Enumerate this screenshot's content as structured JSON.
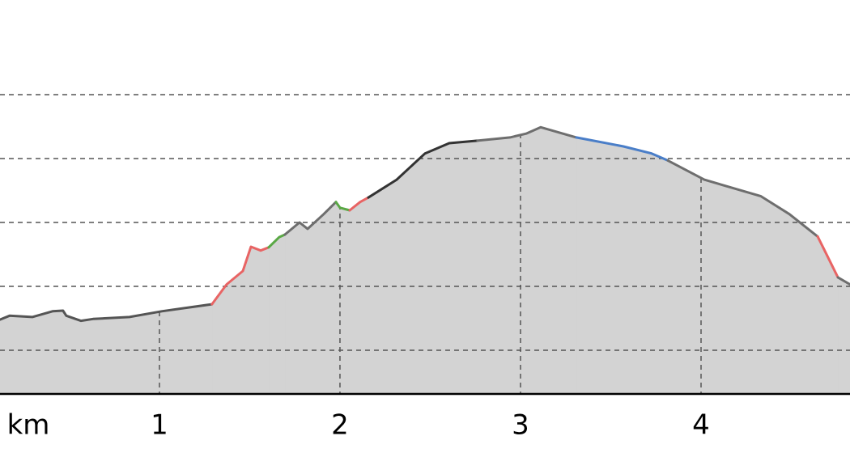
{
  "chart_data": {
    "type": "area",
    "xlabel": "km",
    "xlim": [
      0.117,
      4.825
    ],
    "ylim": [
      0.316,
      6.481
    ],
    "xticks": [
      1,
      2,
      3,
      4
    ],
    "yticks": [
      1,
      2,
      3,
      4,
      5
    ],
    "grid": true,
    "fill": "#d3d3d3",
    "series": [
      {
        "color": "#555555",
        "x": [
          0.117,
          0.17,
          0.296,
          0.408,
          0.466,
          0.484,
          0.565,
          0.632,
          0.834,
          1.013,
          1.291
        ],
        "values": [
          1.48,
          1.54,
          1.52,
          1.61,
          1.62,
          1.54,
          1.46,
          1.49,
          1.52,
          1.61,
          1.72
        ]
      },
      {
        "color": "#e86464",
        "x": [
          1.291,
          1.372,
          1.462,
          1.507,
          1.561,
          1.605
        ],
        "values": [
          1.72,
          2.03,
          2.24,
          2.62,
          2.56,
          2.61
        ]
      },
      {
        "color": "#5aa845",
        "x": [
          1.605,
          1.664,
          1.695
        ],
        "values": [
          2.61,
          2.77,
          2.81
        ]
      },
      {
        "color": "#6e6e6e",
        "x": [
          1.695,
          1.776,
          1.821,
          1.91,
          1.978
        ],
        "values": [
          2.81,
          3.0,
          2.9,
          3.13,
          3.32
        ]
      },
      {
        "color": "#5aa845",
        "x": [
          1.978,
          2.0,
          2.054
        ],
        "values": [
          3.32,
          3.23,
          3.19
        ]
      },
      {
        "color": "#e86464",
        "x": [
          2.054,
          2.112,
          2.157
        ],
        "values": [
          3.19,
          3.32,
          3.39
        ]
      },
      {
        "color": "#333333",
        "x": [
          2.157,
          2.314,
          2.471,
          2.605,
          2.762
        ],
        "values": [
          3.39,
          3.67,
          4.08,
          4.24,
          4.28
        ]
      },
      {
        "color": "#6e6e6e",
        "x": [
          2.762,
          2.942,
          3.031,
          3.112,
          3.309
        ],
        "values": [
          4.28,
          4.33,
          4.39,
          4.49,
          4.33
        ]
      },
      {
        "color": "#4a7ec8",
        "x": [
          3.309,
          3.57,
          3.726,
          3.816
        ],
        "values": [
          4.33,
          4.19,
          4.08,
          3.97
        ]
      },
      {
        "color": "#6e6e6e",
        "x": [
          3.816,
          4.018,
          4.332,
          4.489,
          4.646
        ],
        "values": [
          3.97,
          3.67,
          3.41,
          3.13,
          2.78
        ]
      },
      {
        "color": "#e86464",
        "x": [
          4.646,
          4.758
        ],
        "values": [
          2.78,
          2.14
        ]
      },
      {
        "color": "#6e6e6e",
        "x": [
          4.758,
          4.825
        ],
        "values": [
          2.14,
          2.03
        ]
      }
    ]
  }
}
